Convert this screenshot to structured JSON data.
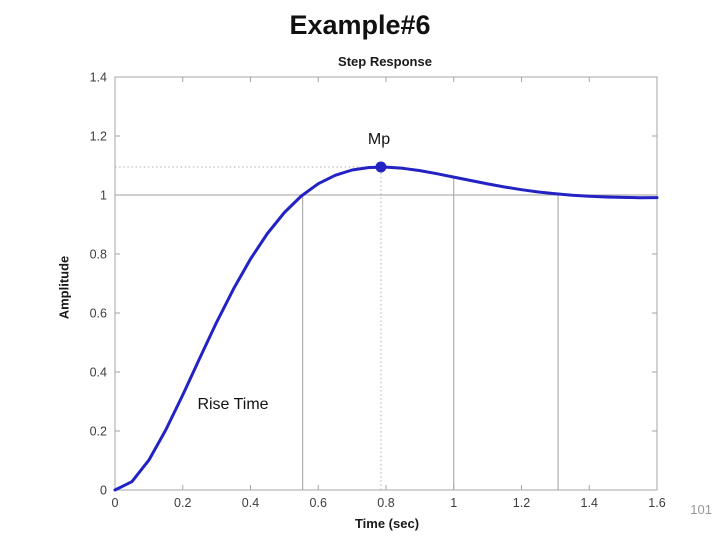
{
  "slide": {
    "title": "Example#6",
    "page_number": "101"
  },
  "chart_data": {
    "type": "line",
    "title": "Step Response",
    "xlabel": "Time (sec)",
    "ylabel": "Amplitude",
    "xlim": [
      0,
      1.6
    ],
    "ylim": [
      0,
      1.4
    ],
    "grid": false,
    "xticks": [
      0,
      0.2,
      0.4,
      0.6,
      0.8,
      1.0,
      1.2,
      1.4,
      1.6
    ],
    "xtick_labels": [
      "0",
      "0.2",
      "0.4",
      "0.6",
      "0.8",
      "1",
      "1.2",
      "1.4",
      "1.6"
    ],
    "yticks": [
      0,
      0.2,
      0.4,
      0.6,
      0.8,
      1.0,
      1.2,
      1.4
    ],
    "ytick_labels": [
      "0",
      "0.2",
      "0.4",
      "0.6",
      "0.8",
      "1",
      "1.2",
      "1.4"
    ],
    "series": [
      {
        "name": "step-response",
        "x": [
          0,
          0.05,
          0.1,
          0.15,
          0.2,
          0.25,
          0.3,
          0.35,
          0.4,
          0.45,
          0.5,
          0.55,
          0.6,
          0.65,
          0.7,
          0.75,
          0.8,
          0.85,
          0.9,
          0.95,
          1.0,
          1.05,
          1.1,
          1.15,
          1.2,
          1.25,
          1.3,
          1.35,
          1.4,
          1.45,
          1.5,
          1.55,
          1.6
        ],
        "y": [
          0,
          0.0282,
          0.1012,
          0.2037,
          0.3223,
          0.4466,
          0.5684,
          0.6819,
          0.783,
          0.8696,
          0.9407,
          0.9966,
          1.0382,
          1.0669,
          1.0846,
          1.0932,
          1.0945,
          1.0905,
          1.0826,
          1.0723,
          1.0608,
          1.049,
          1.0377,
          1.0272,
          1.018,
          1.0102,
          1.0039,
          0.999,
          0.9955,
          0.9931,
          0.9917,
          0.991,
          0.9911
        ]
      }
    ],
    "peak": {
      "t": 0.785,
      "value": 1.095
    },
    "final_value": 1.0,
    "rise_time": 0.554,
    "annotations": {
      "peak_label": "Mp",
      "rise_time_label": "Rise Time"
    },
    "reference_lines": {
      "hlines": [
        {
          "name": "final-value-line",
          "y": 1.0,
          "x1": 0,
          "x2": 1.6,
          "style": "solid"
        },
        {
          "name": "peak-level-line",
          "y": 1.095,
          "x1": 0,
          "x2": 0.785,
          "style": "dotted"
        }
      ],
      "vlines": [
        {
          "name": "rise-time-line",
          "t": 0.554,
          "y1": 0,
          "y2": 1.0,
          "style": "solid"
        },
        {
          "name": "peak-time-line",
          "t": 0.785,
          "y1": 0,
          "y2": 1.095,
          "style": "dotted"
        },
        {
          "name": "reference-line-t1",
          "t": 1.0,
          "y1": 0,
          "y2": 1.061,
          "style": "solid"
        },
        {
          "name": "settling-line",
          "t": 1.308,
          "y1": 0,
          "y2": 1.0,
          "style": "solid"
        }
      ]
    },
    "colors": {
      "curve": "#2323c4",
      "axis": "#a6a6a6",
      "marker_line": "#9f9f9f",
      "dotted_line": "#b0b0b0",
      "background": "#ffffff"
    }
  }
}
